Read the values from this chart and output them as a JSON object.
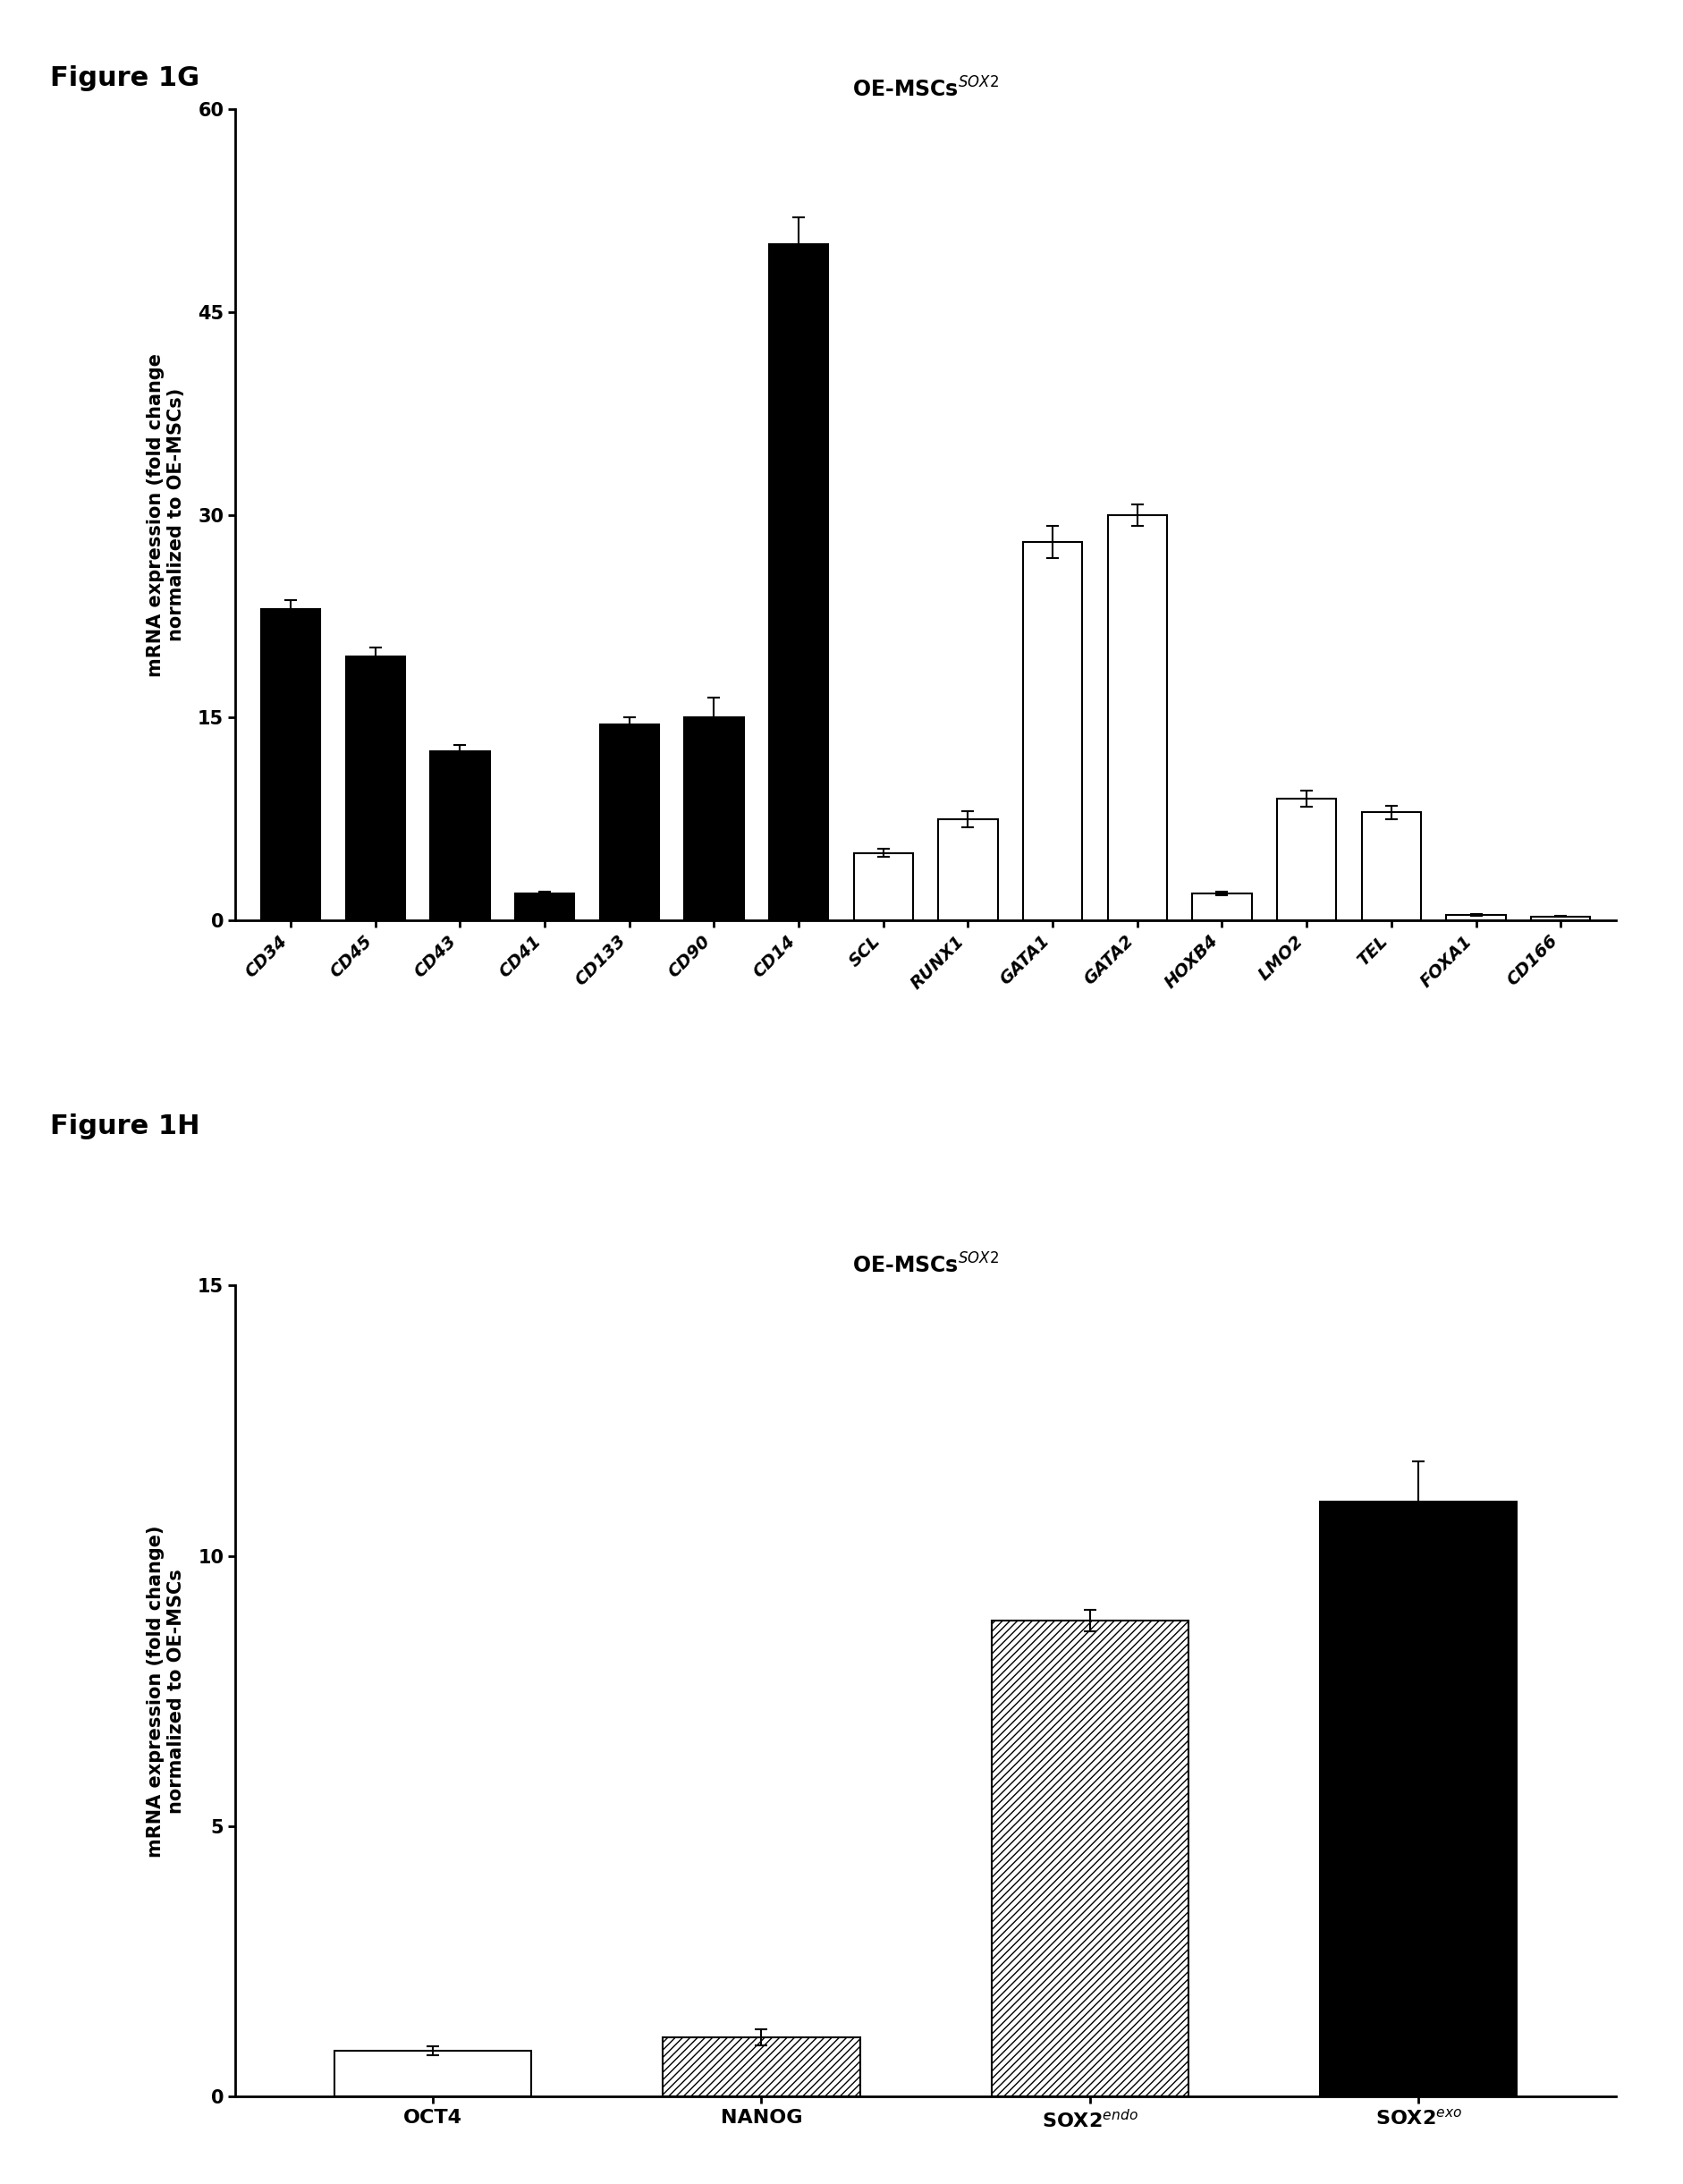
{
  "fig1g": {
    "title": "OE-MSCs$^{SOX2}$",
    "ylabel": "mRNA expression (fold change\nnormalized to OE-MSCs)",
    "categories": [
      "CD34",
      "CD45",
      "CD43",
      "CD41",
      "CD133",
      "CD90",
      "CD14",
      "SCL",
      "RUNX1",
      "GATA1",
      "GATA2",
      "HOXB4",
      "LMO2",
      "TEL",
      "FOXA1",
      "CD166"
    ],
    "values": [
      23.0,
      19.5,
      12.5,
      2.0,
      14.5,
      15.0,
      50.0,
      5.0,
      7.5,
      28.0,
      30.0,
      2.0,
      9.0,
      8.0,
      0.4,
      0.3
    ],
    "errors": [
      0.7,
      0.7,
      0.5,
      0.15,
      0.5,
      1.5,
      2.0,
      0.3,
      0.6,
      1.2,
      0.8,
      0.15,
      0.6,
      0.5,
      0.08,
      0.05
    ],
    "colors": [
      "black",
      "black",
      "black",
      "black",
      "black",
      "black",
      "black",
      "white",
      "white",
      "white",
      "white",
      "white",
      "white",
      "white",
      "white",
      "white"
    ],
    "ylim": [
      0,
      60
    ],
    "yticks": [
      0,
      15,
      30,
      45,
      60
    ],
    "bar_width": 0.7
  },
  "fig1h": {
    "title": "OE-MSCs$^{SOX2}$",
    "ylabel": "mRNA expression (fold change)\nnormalized to OE-MSCs",
    "categories": [
      "OCT4",
      "NANOG",
      "SOX2$^{endo}$",
      "SOX2$^{exo}$"
    ],
    "values": [
      0.85,
      1.1,
      8.8,
      11.0
    ],
    "errors": [
      0.08,
      0.15,
      0.2,
      0.75
    ],
    "patterns": [
      "",
      "////",
      "////",
      ""
    ],
    "colors": [
      "white",
      "white",
      "white",
      "black"
    ],
    "ylim": [
      0,
      15
    ],
    "yticks": [
      0,
      5,
      10,
      15
    ],
    "bar_width": 0.6
  },
  "figure_label_fontsize": 22,
  "axis_fontsize": 15,
  "tick_fontsize": 14,
  "title_fontsize": 17
}
